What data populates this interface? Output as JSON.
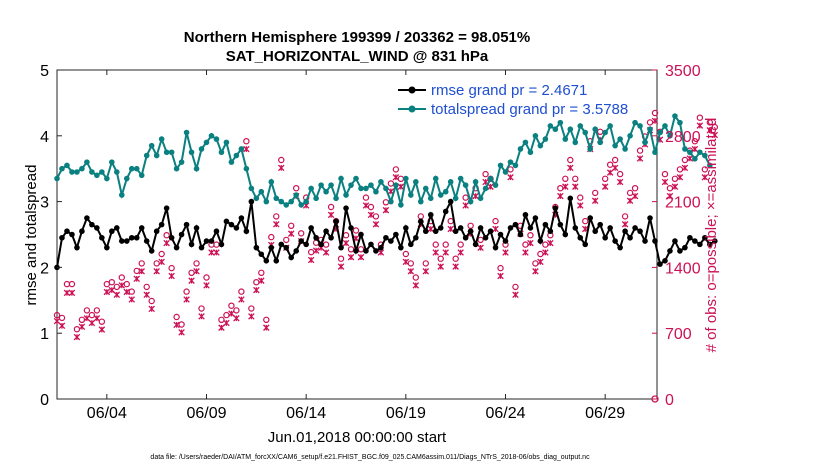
{
  "chart_data": {
    "type": "line",
    "title_line1": "Northern Hemisphere 199399 / 203362 = 98.051%",
    "title_line2": "SAT_HORIZONTAL_WIND @ 831 hPa",
    "xlabel": "Jun.01,2018 00:00:00 start",
    "ylabel_left": "rmse and totalspread",
    "ylabel_right": "# of obs: o=possible; ×=assimilated",
    "footnote": "data file: /Users/raeder/DAI/ATM_forcXX/CAM6_setup/f.e21.FHIST_BGC.f09_025.CAM6assim.011/Diags_NTrS_2018-06/obs_diag_output.nc",
    "x_range_days": [
      1.5,
      31.6
    ],
    "x_ticks": [
      {
        "day": 4,
        "label": "06/04"
      },
      {
        "day": 9,
        "label": "06/09"
      },
      {
        "day": 14,
        "label": "06/14"
      },
      {
        "day": 19,
        "label": "06/19"
      },
      {
        "day": 24,
        "label": "06/24"
      },
      {
        "day": 29,
        "label": "06/29"
      }
    ],
    "ylim_left": [
      0,
      5
    ],
    "yticks_left": [
      "0",
      "1",
      "2",
      "3",
      "4",
      "5"
    ],
    "ylim_right": [
      0,
      3500
    ],
    "yticks_right": [
      "0",
      "700",
      "1400",
      "2100",
      "2800",
      "3500"
    ],
    "legend": [
      {
        "label": "rmse grand pr = 2.4671",
        "color": "#000000"
      },
      {
        "label": "totalspread grand pr = 3.5788",
        "color": "#0a8080"
      }
    ],
    "x_start_day": 1.5,
    "x_step_day": 0.25,
    "series": [
      {
        "name": "rmse",
        "color": "#000000",
        "values": [
          2.0,
          2.45,
          2.55,
          2.5,
          2.3,
          2.55,
          2.75,
          2.65,
          2.6,
          2.45,
          2.3,
          2.55,
          2.6,
          2.4,
          2.4,
          2.45,
          2.45,
          2.6,
          2.4,
          2.25,
          2.55,
          2.65,
          2.9,
          2.45,
          2.3,
          2.5,
          2.65,
          2.35,
          2.6,
          2.3,
          2.4,
          2.4,
          2.55,
          2.35,
          2.7,
          2.65,
          2.6,
          2.75,
          2.55,
          3.0,
          2.3,
          2.2,
          2.1,
          2.3,
          2.1,
          2.35,
          2.3,
          2.15,
          2.25,
          2.4,
          2.35,
          2.6,
          2.45,
          2.35,
          2.55,
          2.45,
          2.7,
          2.3,
          2.9,
          2.6,
          2.25,
          2.5,
          2.25,
          2.35,
          2.25,
          2.3,
          2.45,
          2.4,
          2.5,
          2.3,
          2.6,
          2.35,
          2.45,
          2.7,
          2.55,
          2.8,
          2.55,
          2.6,
          2.85,
          3.0,
          2.55,
          2.6,
          2.45,
          2.55,
          2.35,
          2.6,
          2.45,
          2.55,
          2.3,
          2.5,
          2.4,
          2.6,
          2.65,
          2.5,
          2.8,
          2.6,
          2.75,
          2.4,
          2.65,
          2.55,
          2.9,
          2.65,
          2.5,
          3.05,
          2.6,
          2.45,
          2.35,
          2.75,
          2.55,
          2.65,
          2.45,
          2.6,
          2.4,
          2.3,
          2.55,
          2.45,
          2.6,
          2.55,
          2.4,
          2.75,
          2.4,
          2.05,
          2.1,
          2.25,
          2.4,
          2.25,
          2.3,
          2.45,
          2.4,
          2.35,
          2.45,
          2.35,
          2.4
        ]
      },
      {
        "name": "totalspread",
        "color": "#0a8080",
        "values": [
          3.35,
          3.5,
          3.55,
          3.45,
          3.45,
          3.5,
          3.6,
          3.45,
          3.4,
          3.45,
          3.35,
          3.6,
          3.45,
          3.1,
          3.35,
          3.5,
          3.5,
          3.4,
          3.7,
          3.85,
          3.7,
          3.95,
          3.75,
          3.75,
          3.5,
          3.6,
          4.05,
          3.75,
          3.5,
          3.8,
          3.9,
          4.0,
          3.95,
          3.75,
          3.9,
          3.6,
          3.7,
          3.8,
          3.5,
          3.2,
          3.05,
          3.15,
          3.0,
          3.3,
          3.05,
          3.0,
          2.95,
          3.0,
          3.1,
          2.95,
          3.0,
          3.2,
          3.05,
          3.25,
          3.15,
          3.25,
          3.05,
          3.35,
          3.1,
          3.25,
          3.35,
          3.2,
          3.2,
          3.25,
          3.15,
          3.3,
          3.2,
          3.0,
          3.25,
          2.95,
          3.35,
          3.1,
          3.3,
          3.0,
          3.2,
          3.05,
          3.35,
          3.1,
          3.15,
          3.3,
          3.05,
          3.35,
          3.25,
          3.0,
          3.3,
          3.05,
          3.2,
          3.35,
          3.25,
          3.55,
          3.45,
          3.6,
          3.55,
          3.8,
          3.9,
          3.75,
          4.0,
          3.85,
          3.95,
          4.15,
          4.1,
          4.2,
          3.95,
          4.1,
          3.9,
          4.15,
          4.05,
          3.8,
          4.1,
          3.9,
          4.05,
          4.15,
          3.85,
          3.95,
          3.8,
          4.0,
          4.2,
          4.15,
          3.9,
          4.1,
          3.75,
          4.05,
          4.15,
          4.0,
          4.3,
          4.2,
          3.8,
          3.75,
          3.65,
          3.75,
          3.7,
          3.55
        ]
      },
      {
        "name": "obs possible",
        "color": "#cc1155",
        "values": [
          850,
          820,
          1180,
          1180,
          700,
          800,
          900,
          850,
          900,
          780,
          1180,
          1200,
          1150,
          1250,
          1180,
          1100,
          1320,
          1400,
          1150,
          1000,
          1400,
          1500,
          1700,
          1350,
          830,
          750,
          1100,
          1300,
          1400,
          920,
          1250,
          1600,
          1600,
          800,
          850,
          950,
          900,
          1100,
          2700,
          920,
          1200,
          1300,
          800,
          1680,
          1900,
          2500,
          1650,
          1800,
          2200,
          1720,
          2100,
          1520,
          1620,
          1650,
          1600,
          2000,
          1850,
          1450,
          1700,
          1550,
          1750,
          1550,
          2100,
          2000,
          1900,
          1600,
          2050,
          2250,
          2400,
          2300,
          1500,
          1400,
          1250,
          1900,
          1400,
          1850,
          1600,
          1450,
          1600,
          1850,
          1450,
          1600,
          2100,
          1800,
          2200,
          1650,
          2350,
          2300,
          1850,
          1350,
          1600,
          2400,
          1150,
          1800,
          1600,
          1700,
          1400,
          1500,
          1600,
          1700,
          2000,
          2200,
          2300,
          2500,
          2300,
          2100,
          1850,
          2700,
          2150,
          2800,
          2300,
          2450,
          2500,
          2350,
          1900,
          2150,
          2200,
          2600,
          2750,
          2900,
          3000,
          2800,
          2350,
          2200,
          2300,
          2400,
          2500,
          2600,
          2700,
          2950,
          2400,
          2900,
          2850
        ]
      },
      {
        "name": "obs assimilated",
        "color": "#cc1155",
        "values": [
          850,
          800,
          1150,
          1150,
          680,
          790,
          880,
          830,
          880,
          760,
          1160,
          1180,
          1130,
          1230,
          1160,
          1080,
          1300,
          1380,
          1130,
          980,
          1380,
          1480,
          1680,
          1330,
          810,
          730,
          1080,
          1280,
          1380,
          900,
          1230,
          1580,
          1580,
          780,
          830,
          930,
          880,
          1080,
          2680,
          900,
          1180,
          1280,
          780,
          1660,
          1880,
          2480,
          1630,
          1780,
          2180,
          1700,
          2080,
          1500,
          1600,
          1630,
          1580,
          1980,
          1830,
          1430,
          1680,
          1530,
          1730,
          1530,
          2080,
          1980,
          1880,
          1580,
          2030,
          2230,
          2380,
          2280,
          1480,
          1380,
          1230,
          1880,
          1380,
          1830,
          1580,
          1430,
          1580,
          1830,
          1430,
          1580,
          2080,
          1780,
          2180,
          1630,
          2330,
          2280,
          1830,
          1330,
          1580,
          2380,
          1130,
          1780,
          1580,
          1680,
          1380,
          1480,
          1580,
          1680,
          1980,
          2180,
          2280,
          2480,
          2280,
          2080,
          1830,
          2680,
          2130,
          2780,
          2280,
          2430,
          2480,
          2330,
          1880,
          2130,
          2180,
          2580,
          2730,
          2880,
          2980,
          2780,
          2330,
          2180,
          2280,
          2380,
          2480,
          2580,
          2680,
          2930,
          2380,
          2880,
          2830
        ]
      }
    ]
  }
}
